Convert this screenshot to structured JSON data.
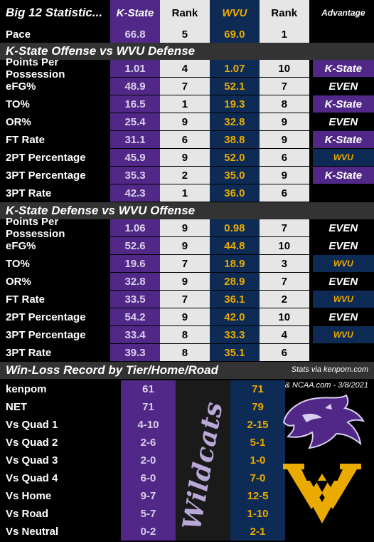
{
  "header": {
    "title": "Big 12 Statistic...",
    "col_ks": "K-State",
    "col_rank1": "Rank",
    "col_wv": "WVU",
    "col_rank2": "Rank",
    "col_adv": "Advantage"
  },
  "pace": {
    "label": "Pace",
    "ks": "66.8",
    "ks_rank": "5",
    "wv": "69.0",
    "wv_rank": "1"
  },
  "offense": {
    "title": "K-State Offense vs WVU Defense",
    "rows": [
      {
        "label": "Points Per Possession",
        "ks": "1.01",
        "ks_rank": "4",
        "wv": "1.07",
        "wv_rank": "10",
        "adv": "K-State",
        "type": "ks"
      },
      {
        "label": "eFG%",
        "ks": "48.9",
        "ks_rank": "7",
        "wv": "52.1",
        "wv_rank": "7",
        "adv": "EVEN",
        "type": "even"
      },
      {
        "label": "TO%",
        "ks": "16.5",
        "ks_rank": "1",
        "wv": "19.3",
        "wv_rank": "8",
        "adv": "K-State",
        "type": "ks"
      },
      {
        "label": "OR%",
        "ks": "25.4",
        "ks_rank": "9",
        "wv": "32.8",
        "wv_rank": "9",
        "adv": "EVEN",
        "type": "even"
      },
      {
        "label": "FT Rate",
        "ks": "31.1",
        "ks_rank": "6",
        "wv": "38.8",
        "wv_rank": "9",
        "adv": "K-State",
        "type": "ks"
      },
      {
        "label": "2PT Percentage",
        "ks": "45.9",
        "ks_rank": "9",
        "wv": "52.0",
        "wv_rank": "6",
        "adv": "WVU",
        "type": "wvu"
      },
      {
        "label": "3PT Percentage",
        "ks": "35.3",
        "ks_rank": "2",
        "wv": "35.0",
        "wv_rank": "9",
        "adv": "K-State",
        "type": "ks"
      },
      {
        "label": "3PT Rate",
        "ks": "42.3",
        "ks_rank": "1",
        "wv": "36.0",
        "wv_rank": "6",
        "adv": "",
        "type": "none"
      }
    ]
  },
  "defense": {
    "title": "K-State Defense vs WVU Offense",
    "rows": [
      {
        "label": "Points Per Possession",
        "ks": "1.06",
        "ks_rank": "9",
        "wv": "0.98",
        "wv_rank": "7",
        "adv": "EVEN",
        "type": "even"
      },
      {
        "label": "eFG%",
        "ks": "52.6",
        "ks_rank": "9",
        "wv": "44.8",
        "wv_rank": "10",
        "adv": "EVEN",
        "type": "even"
      },
      {
        "label": "TO%",
        "ks": "19.6",
        "ks_rank": "7",
        "wv": "18.9",
        "wv_rank": "3",
        "adv": "WVU",
        "type": "wvu"
      },
      {
        "label": "OR%",
        "ks": "32.8",
        "ks_rank": "9",
        "wv": "28.9",
        "wv_rank": "7",
        "adv": "EVEN",
        "type": "even"
      },
      {
        "label": "FT Rate",
        "ks": "33.5",
        "ks_rank": "7",
        "wv": "36.1",
        "wv_rank": "2",
        "adv": "WVU",
        "type": "wvu"
      },
      {
        "label": "2PT Percentage",
        "ks": "54.2",
        "ks_rank": "9",
        "wv": "42.0",
        "wv_rank": "10",
        "adv": "EVEN",
        "type": "even"
      },
      {
        "label": "3PT Percentage",
        "ks": "33.4",
        "ks_rank": "8",
        "wv": "33.3",
        "wv_rank": "4",
        "adv": "WVU",
        "type": "wvu"
      },
      {
        "label": "3PT Rate",
        "ks": "39.3",
        "ks_rank": "8",
        "wv": "35.1",
        "wv_rank": "6",
        "adv": "",
        "type": "none"
      }
    ]
  },
  "record": {
    "title": "Win-Loss Record by Tier/Home/Road",
    "credit_line1": "Stats via kenpom.com",
    "credit_line2": "& NCAA.com - 3/8/2021",
    "wildcats_text": "Wildcats",
    "rows": [
      {
        "label": "kenpom",
        "ks": "61",
        "wv": "71"
      },
      {
        "label": "NET",
        "ks": "71",
        "wv": "79"
      },
      {
        "label": "Vs Quad 1",
        "ks": "4-10",
        "wv": "2-15"
      },
      {
        "label": "Vs Quad 2",
        "ks": "2-6",
        "wv": "5-1"
      },
      {
        "label": "Vs Quad 3",
        "ks": "2-0",
        "wv": "1-0"
      },
      {
        "label": "Vs Quad 4",
        "ks": "6-0",
        "wv": "7-0"
      },
      {
        "label": "Vs Home",
        "ks": "9-7",
        "wv": "12-5"
      },
      {
        "label": "Vs Road",
        "ks": "5-7",
        "wv": "1-10"
      },
      {
        "label": "Vs Neutral",
        "ks": "0-2",
        "wv": "2-1"
      }
    ]
  },
  "colors": {
    "ksu_purple": "#512888",
    "wvu_navy": "#0d2b55",
    "wvu_gold": "#eaaa00"
  }
}
